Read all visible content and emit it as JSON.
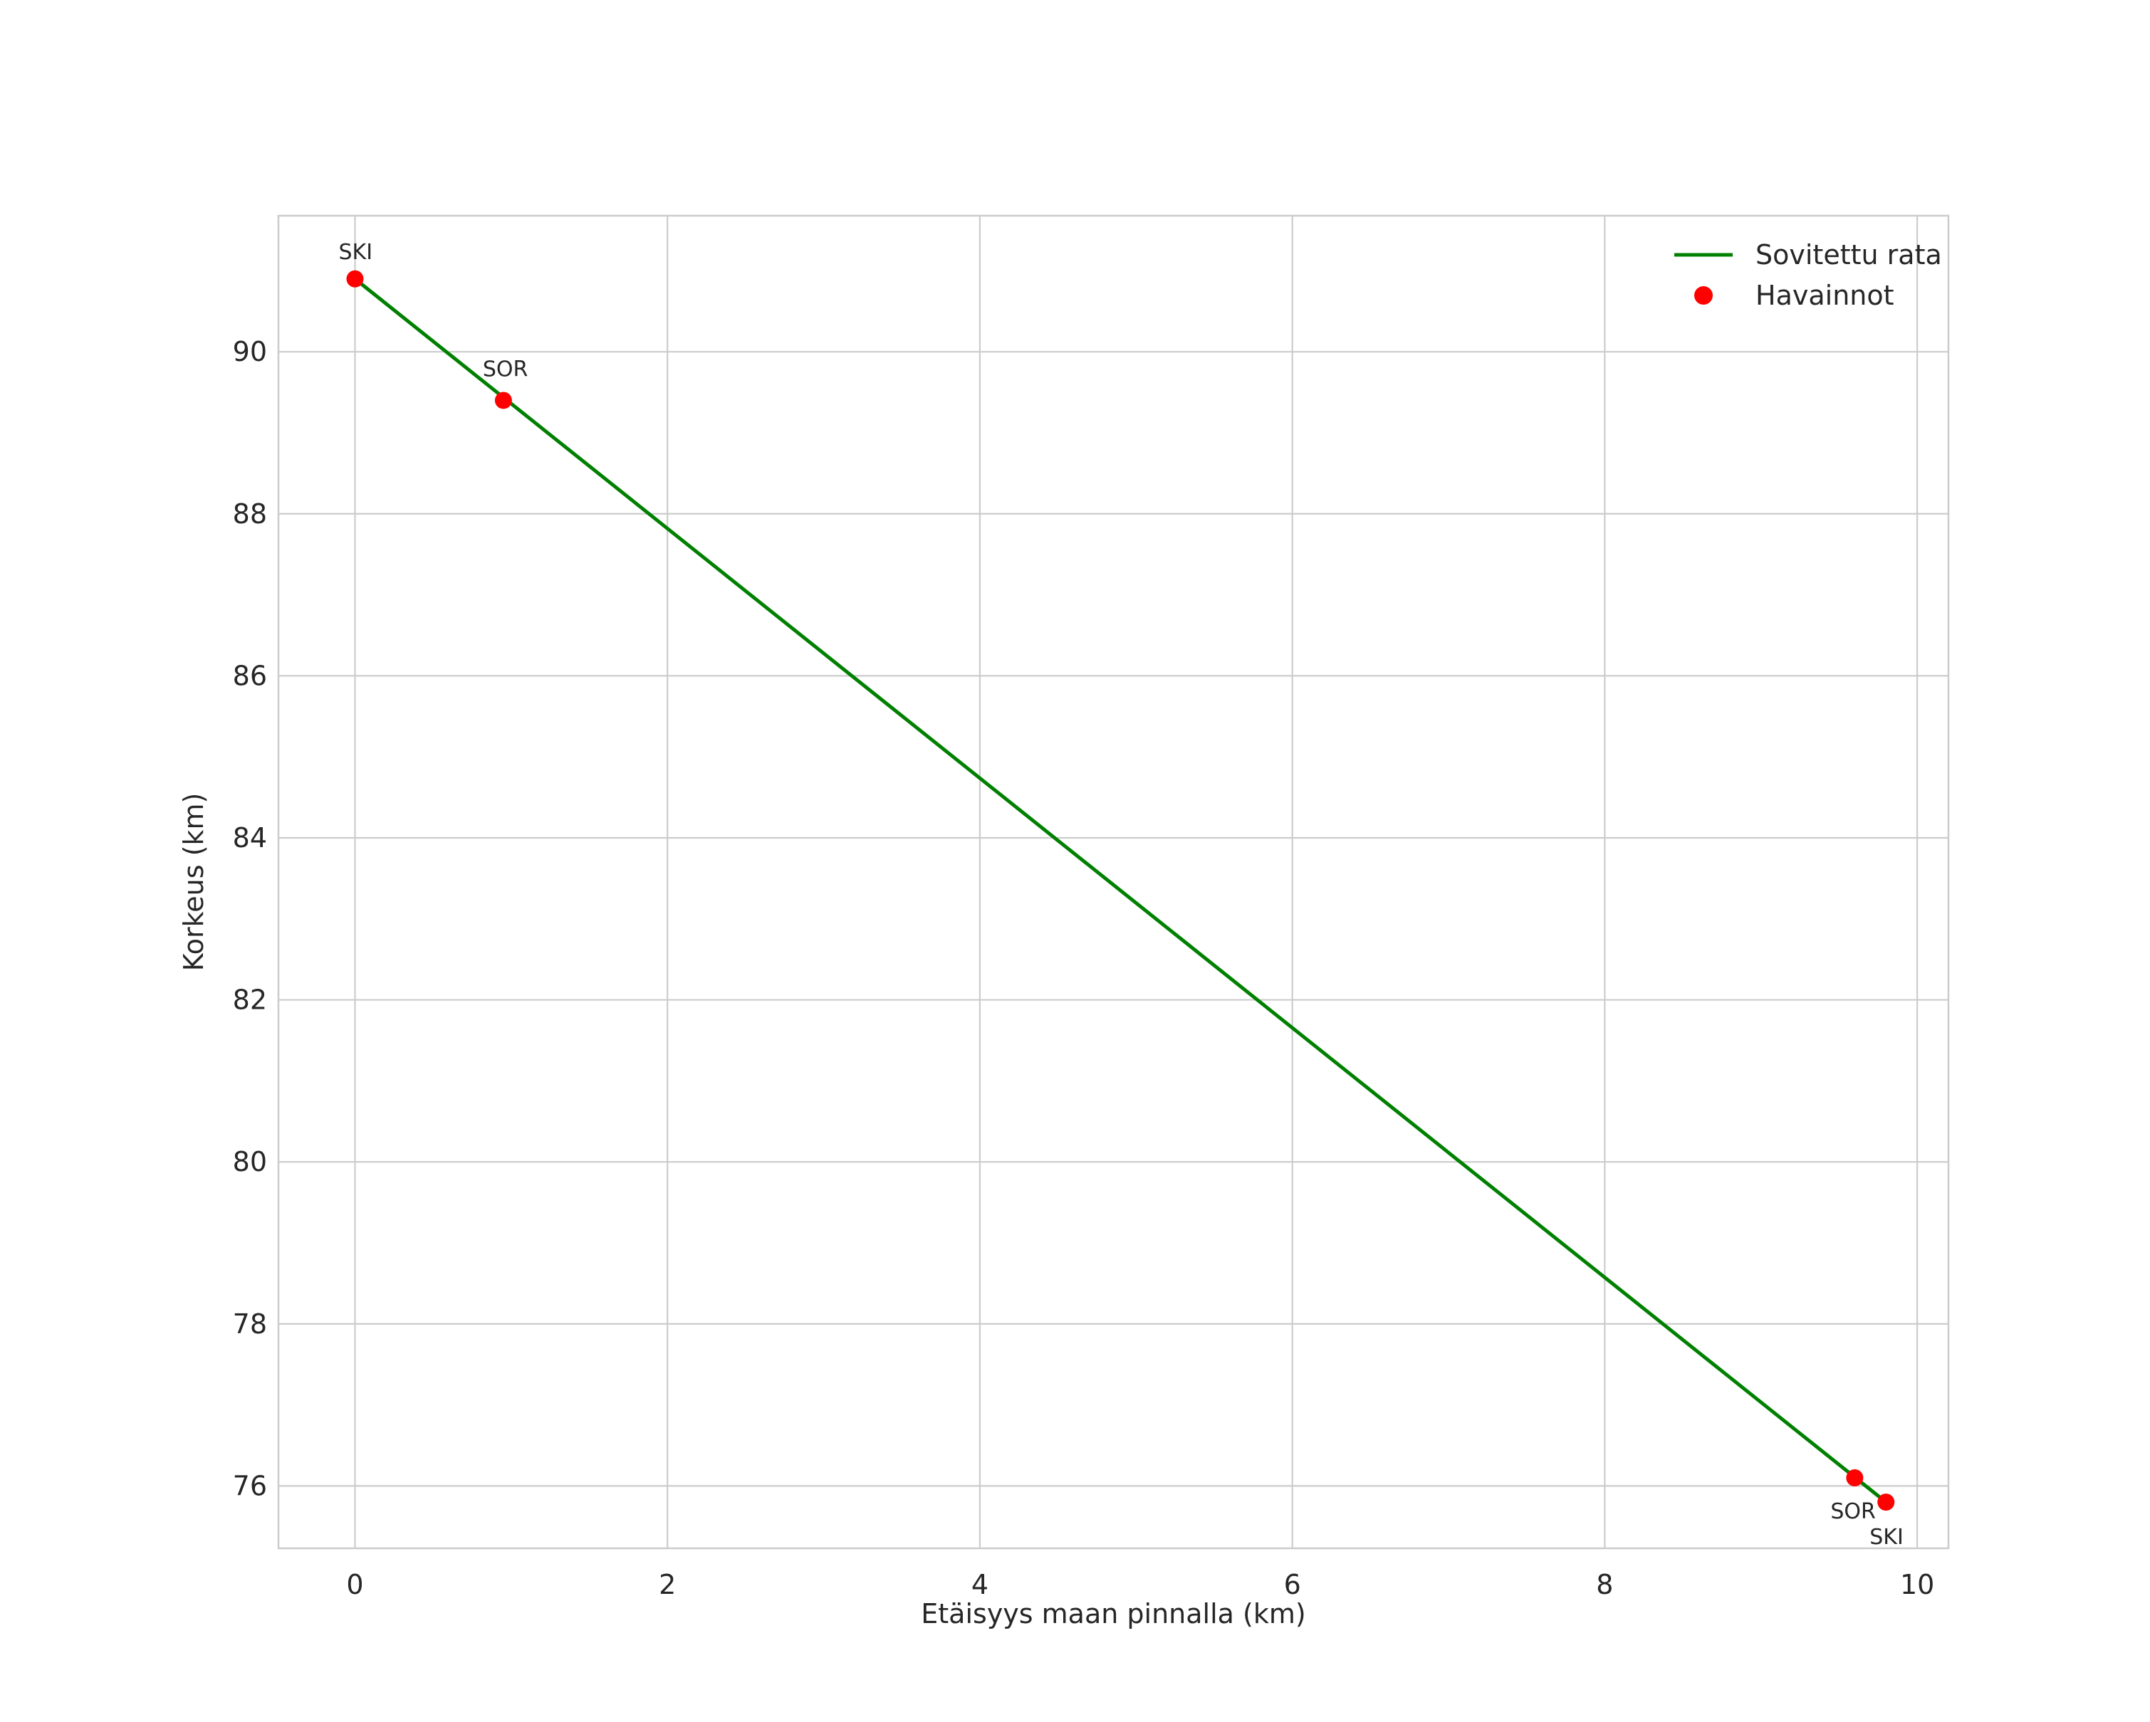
{
  "figure": {
    "background": "#ffffff"
  },
  "chart_data": {
    "type": "line",
    "title": "",
    "xlabel": "Etäisyys maan pinnalla (km)",
    "ylabel": "Korkeus (km)",
    "xlim": [
      -0.49,
      10.2
    ],
    "ylim": [
      75.23,
      91.68
    ],
    "xticks": [
      0,
      2,
      4,
      6,
      8,
      10
    ],
    "yticks": [
      76,
      78,
      80,
      82,
      84,
      86,
      88,
      90
    ],
    "grid": true,
    "legend": {
      "position": "upper-right",
      "entries": [
        {
          "label": "Sovitettu rata",
          "type": "line",
          "color": "#008000"
        },
        {
          "label": "Havainnot",
          "type": "marker",
          "color": "#ff0000"
        }
      ]
    },
    "series": [
      {
        "name": "Sovitettu rata",
        "type": "line",
        "color": "#008000",
        "x": [
          0,
          9.8
        ],
        "y": [
          90.9,
          75.8
        ]
      },
      {
        "name": "Havainnot",
        "type": "scatter",
        "color": "#ff0000",
        "points": [
          {
            "x": 0.0,
            "y": 90.9,
            "label": "SKI",
            "label_dx": -23,
            "label_dy": -28
          },
          {
            "x": 0.95,
            "y": 89.4,
            "label": "SOR",
            "label_dx": -29,
            "label_dy": -34
          },
          {
            "x": 9.6,
            "y": 76.1,
            "label": "SOR",
            "label_dx": -34,
            "label_dy": 57
          },
          {
            "x": 9.8,
            "y": 75.8,
            "label": "SKI",
            "label_dx": -23,
            "label_dy": 59
          }
        ]
      }
    ],
    "style": {
      "grid_color": "#cccccc",
      "spine_color": "#cccccc",
      "text_color": "#262626",
      "background": "#ffffff"
    }
  }
}
